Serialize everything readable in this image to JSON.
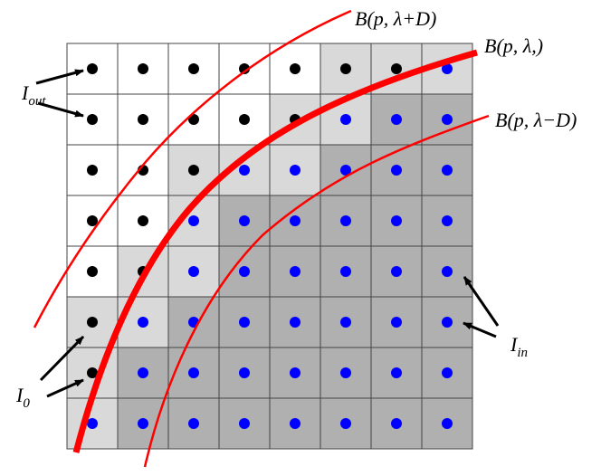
{
  "curve_labels": {
    "outer": "B(p, λ+D)",
    "middle": "B(p, λ,)",
    "inner": "B(p, λ−D)"
  },
  "point_labels": {
    "out": {
      "base": "I",
      "sub": "out"
    },
    "in": {
      "base": "I",
      "sub": "in"
    },
    "zero": {
      "base": "I",
      "sub": "0"
    }
  }
}
